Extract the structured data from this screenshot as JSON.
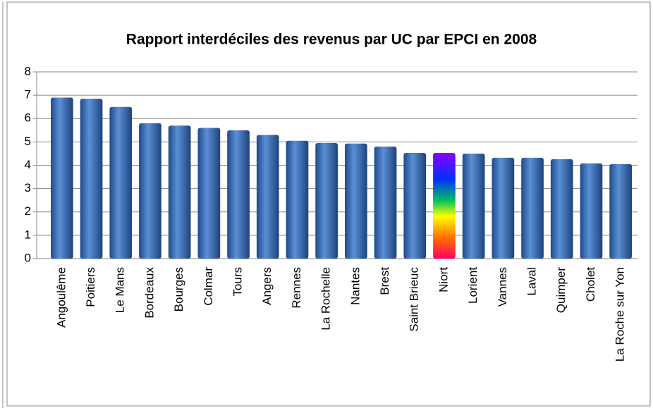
{
  "chart_data": {
    "type": "bar",
    "title": "Rapport interdéciles des revenus par UC par EPCI en 2008",
    "categories": [
      "Angoulême",
      "Poitiers",
      "Le Mans",
      "Bordeaux",
      "Bourges",
      "Colmar",
      "Tours",
      "Angers",
      "Rennes",
      "La Rochelle",
      "Nantes",
      "Brest",
      "Saint Brieuc",
      "Niort",
      "Lorient",
      "Vannes",
      "Laval",
      "Quimper",
      "Cholet",
      "La Roche sur Yon"
    ],
    "values": [
      6.9,
      6.85,
      6.5,
      5.8,
      5.7,
      5.6,
      5.5,
      5.3,
      5.05,
      4.95,
      4.93,
      4.8,
      4.53,
      4.53,
      4.5,
      4.32,
      4.32,
      4.26,
      4.08,
      4.05
    ],
    "colors": [
      "#3a6cb5",
      "#3a6cb5",
      "#3a6cb5",
      "#3a6cb5",
      "#3a6cb5",
      "#3a6cb5",
      "#3a6cb5",
      "#3a6cb5",
      "#3a6cb5",
      "#3a6cb5",
      "#3a6cb5",
      "#3a6cb5",
      "#3a6cb5",
      "rainbow",
      "#3a6cb5",
      "#3a6cb5",
      "#3a6cb5",
      "#3a6cb5",
      "#3a6cb5",
      "#3a6cb5"
    ],
    "ylim": [
      0,
      8
    ],
    "yticks": [
      0,
      1,
      2,
      3,
      4,
      5,
      6,
      7,
      8
    ],
    "grid": true
  }
}
